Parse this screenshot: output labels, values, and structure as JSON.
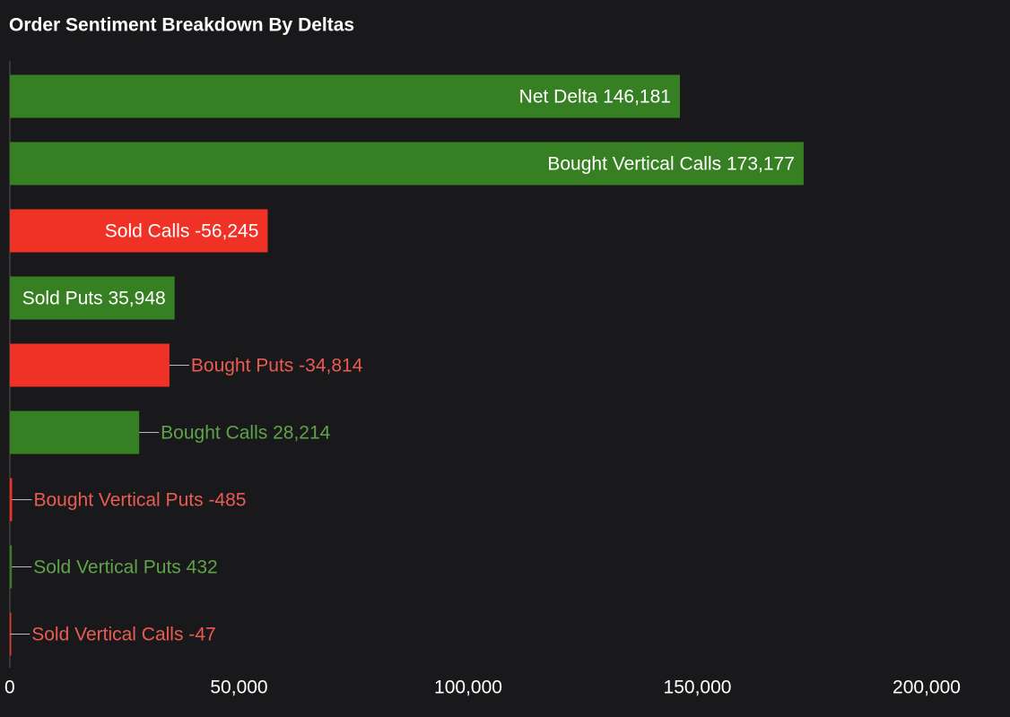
{
  "chart_data": {
    "type": "hbar",
    "title": "Order Sentiment Breakdown By Deltas",
    "categories": [
      "Net Delta",
      "Bought Vertical Calls",
      "Sold Calls",
      "Sold Puts",
      "Bought Puts",
      "Bought Calls",
      "Bought Vertical Puts",
      "Sold Vertical Puts",
      "Sold Vertical Calls"
    ],
    "values": [
      146181,
      173177,
      -56245,
      35948,
      -34814,
      28214,
      -485,
      432,
      -47
    ],
    "value_labels": [
      "146,181",
      "173,177",
      "-56,245",
      "35,948",
      "-34,814",
      "28,214",
      "-485",
      "432",
      "-47"
    ],
    "positive_color": "#367f22",
    "negative_color": "#f03125",
    "positive_label_color": "#5fa24b",
    "negative_label_color": "#ea5b51",
    "xlim": [
      0,
      200000
    ],
    "xticks": [
      0,
      {
        "value": 50000,
        "label": "50,000"
      },
      {
        "value": 100000,
        "label": "100,000"
      },
      {
        "value": 150000,
        "label": "150,000"
      },
      {
        "value": 200000,
        "label": "200,000"
      }
    ]
  }
}
